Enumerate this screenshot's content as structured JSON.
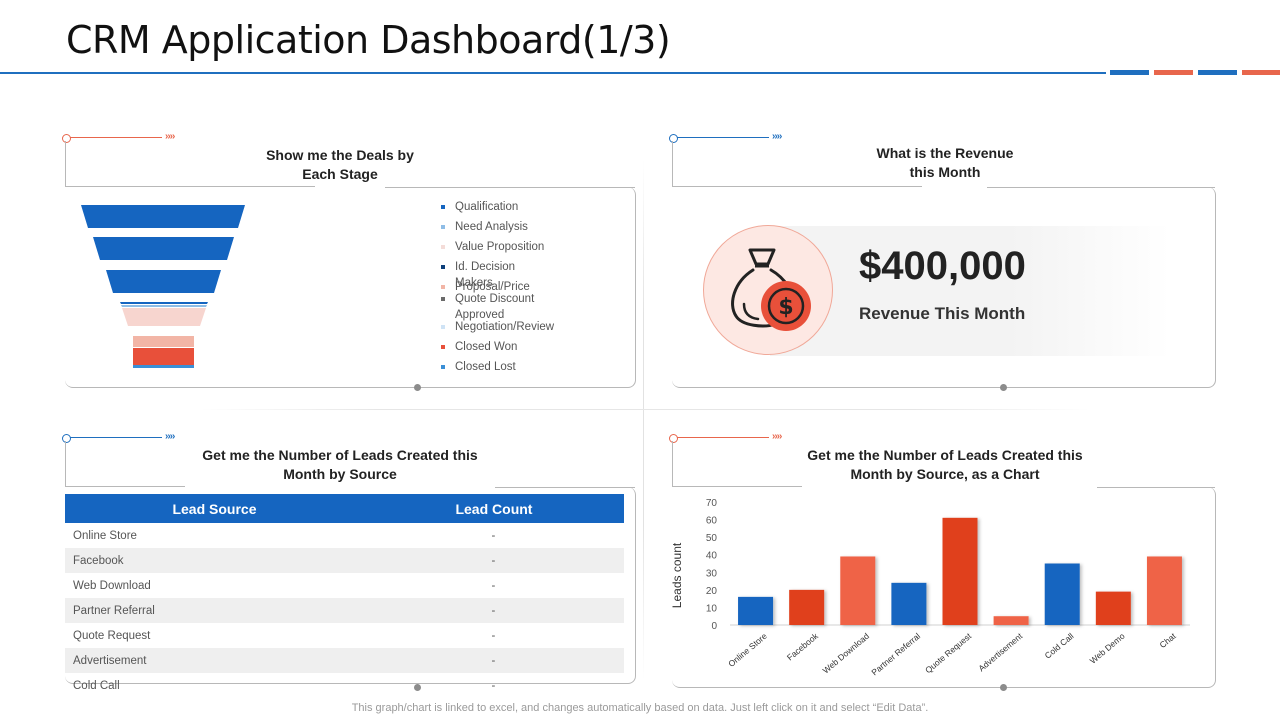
{
  "title": "CRM Application Dashboard(1/3)",
  "colors": {
    "blue": "#1565c0",
    "red": "#e0401f",
    "orange": "#ef6347",
    "accent_bar_blue": "#1f6fbf",
    "accent_bar_red": "#e8664c"
  },
  "panels": {
    "deals": {
      "heading_line1": "Show me the Deals by",
      "heading_line2": "Each Stage"
    },
    "revenue": {
      "heading_line1": "What is the Revenue",
      "heading_line2": "this Month",
      "value": "$400,000",
      "label": "Revenue This Month",
      "icon": "money-bag-dollar-icon"
    },
    "leads_table": {
      "heading_line1": "Get me the Number of Leads Created this",
      "heading_line2": "Month by Source"
    },
    "leads_chart": {
      "heading_line1": "Get me the Number of Leads Created this",
      "heading_line2": "Month by Source, as a Chart"
    }
  },
  "funnel_legend": [
    {
      "label": "Qualification",
      "color": "#1565c0"
    },
    {
      "label": "Need Analysis",
      "color": "#8fbde6"
    },
    {
      "label": "Value Proposition",
      "color": "#f4dcd8"
    },
    {
      "label": "Id. Decision Makers",
      "color": "#0d3f7a"
    },
    {
      "label": "Proposal/Price",
      "color": "#f2b5a6"
    },
    {
      "label": "Quote Discount Approved",
      "color": "#6a6a6a"
    },
    {
      "label": "Negotiation/Review",
      "color": "#cfe3f5"
    },
    {
      "label": "Closed Won",
      "color": "#e8503a"
    },
    {
      "label": "Closed Lost",
      "color": "#3a8fd6"
    }
  ],
  "table": {
    "headers": [
      "Lead Source",
      "Lead Count"
    ],
    "rows": [
      [
        "Online Store",
        "-"
      ],
      [
        "Facebook",
        "-"
      ],
      [
        "Web Download",
        "-"
      ],
      [
        "Partner Referral",
        "-"
      ],
      [
        "Quote Request",
        "-"
      ],
      [
        "Advertisement",
        "-"
      ],
      [
        "Cold Call",
        "-"
      ]
    ]
  },
  "chart_data": {
    "type": "bar",
    "categories": [
      "Online Store",
      "Facebook",
      "Web Download",
      "Partner Referral",
      "Quote Request",
      "Advertisement",
      "Cold Call",
      "Web Demo",
      "Chat"
    ],
    "values": [
      16,
      20,
      39,
      24,
      61,
      5,
      35,
      19,
      39
    ],
    "bar_colors": [
      "#1565c0",
      "#e0401f",
      "#ef6347",
      "#1565c0",
      "#e0401f",
      "#ef6347",
      "#1565c0",
      "#e0401f",
      "#ef6347"
    ],
    "ylabel": "Leads count",
    "xlabel": "",
    "ylim": [
      0,
      70
    ],
    "yticks": [
      "0",
      "10",
      "20",
      "30",
      "40",
      "50",
      "60",
      "70"
    ]
  },
  "footer": "This graph/chart is linked to excel, and changes automatically based on data. Just left click on it and select “Edit Data”."
}
